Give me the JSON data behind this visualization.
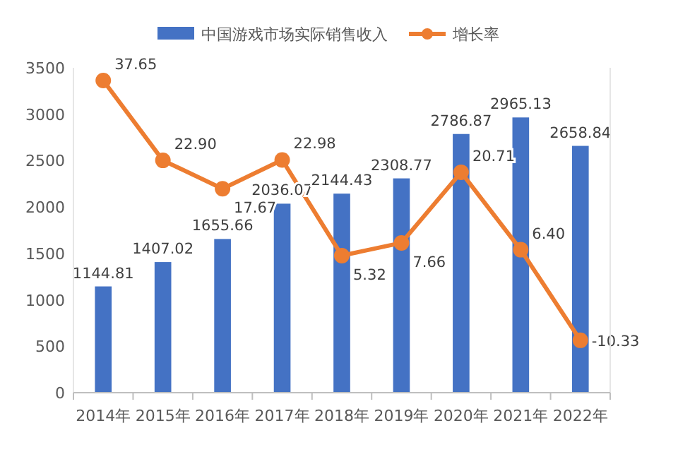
{
  "chart_data": {
    "type": "bar",
    "categories": [
      "2014年",
      "2015年",
      "2016年",
      "2017年",
      "2018年",
      "2019年",
      "2020年",
      "2021年",
      "2022年"
    ],
    "series": [
      {
        "name": "中国游戏市场实际销售收入",
        "type": "bar",
        "color": "#4472c4",
        "values": [
          1144.81,
          1407.02,
          1655.66,
          2036.07,
          2144.43,
          2308.77,
          2786.87,
          2965.13,
          2658.84
        ]
      },
      {
        "name": "增长率",
        "type": "line",
        "axis": "y2",
        "color": "#ed7d31",
        "values": [
          37.65,
          22.9,
          17.67,
          22.98,
          5.32,
          7.66,
          20.71,
          6.4,
          -10.33
        ],
        "value_labels": [
          "37.65",
          "22.90",
          "17.67",
          "22.98",
          "5.32",
          "7.66",
          "20.71",
          "6.40",
          "-10.33"
        ]
      }
    ],
    "ylim": [
      0,
      3500
    ],
    "yticks": [
      0,
      500,
      1000,
      1500,
      2000,
      2500,
      3000,
      3500
    ],
    "y2lim": [
      -20,
      40
    ],
    "data_labels": true,
    "legend": "top",
    "marker": "circle",
    "grid": false
  }
}
